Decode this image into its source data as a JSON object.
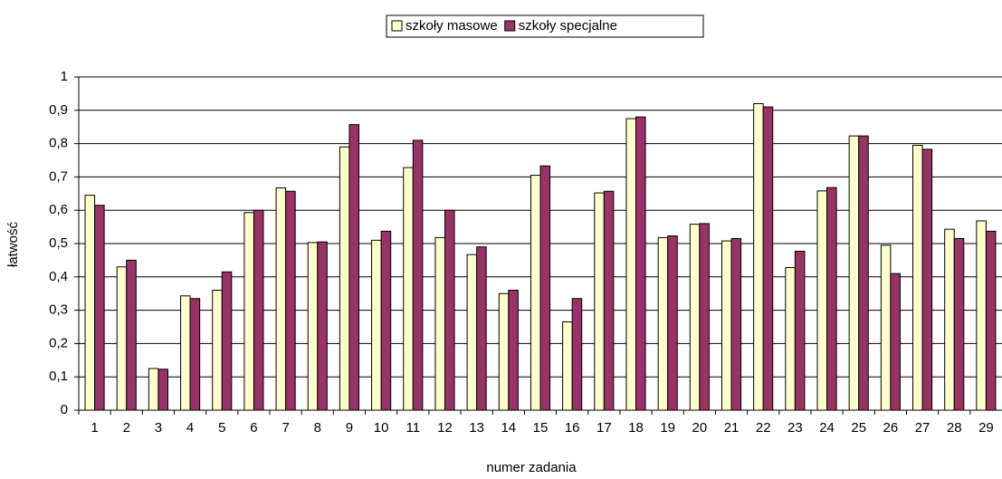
{
  "chart_data": {
    "type": "bar",
    "xlabel": "numer zadania",
    "ylabel": "łatwość",
    "categories": [
      "1",
      "2",
      "3",
      "4",
      "5",
      "6",
      "7",
      "8",
      "9",
      "10",
      "11",
      "12",
      "13",
      "14",
      "15",
      "16",
      "17",
      "18",
      "19",
      "20",
      "21",
      "22",
      "23",
      "24",
      "25",
      "26",
      "27",
      "28",
      "29"
    ],
    "series": [
      {
        "name": "szkoły masowe",
        "color": "#ffffcc",
        "values": [
          0.645,
          0.43,
          0.125,
          0.343,
          0.36,
          0.593,
          0.667,
          0.503,
          0.79,
          0.51,
          0.728,
          0.518,
          0.467,
          0.35,
          0.705,
          0.265,
          0.652,
          0.875,
          0.518,
          0.558,
          0.508,
          0.92,
          0.428,
          0.658,
          0.823,
          0.495,
          0.795,
          0.543,
          0.568
        ]
      },
      {
        "name": "szkoły specjalne",
        "color": "#993366",
        "values": [
          0.615,
          0.45,
          0.123,
          0.335,
          0.415,
          0.6,
          0.657,
          0.505,
          0.857,
          0.537,
          0.81,
          0.6,
          0.49,
          0.36,
          0.733,
          0.335,
          0.657,
          0.88,
          0.523,
          0.56,
          0.515,
          0.91,
          0.477,
          0.668,
          0.823,
          0.41,
          0.783,
          0.515,
          0.537
        ]
      }
    ],
    "ylim": [
      0,
      1
    ],
    "yticks": [
      0,
      {
        "value": 0.1,
        "label": "0,1"
      },
      {
        "value": 0.2,
        "label": "0,2"
      },
      {
        "value": 0.3,
        "label": "0,3"
      },
      {
        "value": 0.4,
        "label": "0,4"
      },
      {
        "value": 0.5,
        "label": "0,5"
      },
      {
        "value": 0.6,
        "label": "0,6"
      },
      {
        "value": 0.7,
        "label": "0,7"
      },
      {
        "value": 0.8,
        "label": "0,8"
      },
      {
        "value": 0.9,
        "label": "0,9"
      },
      1
    ],
    "grid": true,
    "legend": "top"
  }
}
